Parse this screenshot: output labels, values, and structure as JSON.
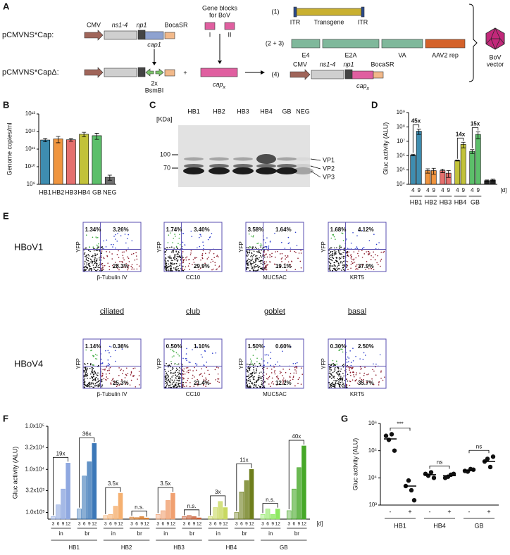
{
  "panel_labels": [
    "A",
    "B",
    "C",
    "D",
    "E",
    "F",
    "G"
  ],
  "diagram_a": {
    "row1": {
      "name": "pCMVNS*Cap:",
      "cmv": "CMV",
      "ns": "ns1-4",
      "np": "np1",
      "boca": "BocaSR",
      "cap": "cap1"
    },
    "row2": {
      "name": "pCMVNS*CapΔ:",
      "sites": "2x",
      "enzyme": "BsmBI"
    },
    "plus": "+",
    "gene_blocks": {
      "title_line1": "Gene blocks",
      "title_line2": "for BoV",
      "blocks": [
        "I",
        "II"
      ],
      "cap": {
        "text": "cap",
        "sub": "x"
      }
    },
    "vectors": [
      {
        "index": "(1)",
        "labels": [
          "ITR",
          "Transgene",
          "ITR"
        ]
      },
      {
        "index": "(2 + 3)",
        "labels": [
          "E4",
          "E2A",
          "VA",
          "AAV2 rep"
        ]
      },
      {
        "index": "(4)",
        "labels": [
          "CMV",
          "ns1-4",
          "np1",
          "BocaSR"
        ],
        "cap": {
          "text": "cap",
          "sub": "x"
        }
      }
    ],
    "product": [
      "BoV",
      "vector"
    ]
  },
  "blot": {
    "unit": "[KDa]",
    "markers": [
      "100",
      "70"
    ],
    "lanes": [
      "HB1",
      "HB2",
      "HB3",
      "HB4",
      "GB",
      "NEG"
    ],
    "proteins": [
      "VP1",
      "VP2",
      "VP3"
    ]
  },
  "flow": {
    "y_label": "YFP",
    "cell_types": [
      "ciliated",
      "club",
      "goblet",
      "basal"
    ],
    "rows": [
      {
        "name": "HBoV1",
        "plots": [
          {
            "x_label": "β-Tubulin IV",
            "ul": "1.34%",
            "ur": "3.26%",
            "lr": "28.3%"
          },
          {
            "x_label": "CC10",
            "ul": "1.74%",
            "ur": "3.40%",
            "lr": "29.9%"
          },
          {
            "x_label": "MUC5AC",
            "ul": "3.58%",
            "ur": "1.64%",
            "lr": "19.1%"
          },
          {
            "x_label": "KRT5",
            "ul": "1.68%",
            "ur": "4.12%",
            "lr": "37.9%"
          }
        ]
      },
      {
        "name": "HBoV4",
        "plots": [
          {
            "x_label": "β-Tubulin IV",
            "ul": "1.14%",
            "ur": "0.36%",
            "lr": "25.3%"
          },
          {
            "x_label": "CC10",
            "ul": "0.50%",
            "ur": "1.10%",
            "lr": "21.4%"
          },
          {
            "x_label": "MUC5AC",
            "ul": "1.50%",
            "ur": "0.60%",
            "lr": "12.2%"
          },
          {
            "x_label": "KRT5",
            "ul": "0.30%",
            "ur": "2.50%",
            "lr": "35.7%"
          }
        ]
      }
    ]
  },
  "chart_data": [
    {
      "type": "bar",
      "y_label": "Genome copies/ml",
      "log_scale": true,
      "categories": [
        "HB1",
        "HB2",
        "HB3",
        "HB4",
        "GB",
        "NEG"
      ],
      "values": [
        330000000000,
        380000000000,
        340000000000,
        700000000000,
        580000000000,
        2500000000
      ],
      "errors": [
        70000000000,
        150000000000,
        60000000000,
        200000000000,
        220000000000,
        800000000
      ],
      "colors": [
        "#3e8db0",
        "#f0953f",
        "#e5706e",
        "#c2c23a",
        "#5cbf6a",
        "#6e6e6e"
      ],
      "ylim": [
        1000000000,
        10000000000000
      ],
      "yticks": [
        {
          "value": 1000000000,
          "label": "10⁹"
        },
        {
          "value": 10000000000,
          "label": "10¹⁰"
        },
        {
          "value": 100000000000,
          "label": "10¹¹"
        },
        {
          "value": 1000000000000,
          "label": "10¹²"
        },
        {
          "value": 10000000000000,
          "label": "10¹³"
        }
      ]
    },
    {
      "type": "grouped_bar",
      "y_label": "Gluc activity (ALU)",
      "log_scale": true,
      "categories": [
        "HB1",
        "HB2",
        "HB3",
        "HB4",
        "GB",
        null
      ],
      "colors": [
        "#3e8db0",
        "#f0953f",
        "#e5706e",
        "#c2c23a",
        "#5cbf6a",
        "#222222"
      ],
      "series": [
        {
          "name": "4",
          "values": [
            1100000,
            90000,
            90000,
            450000,
            2000000,
            18000
          ],
          "errors": [
            150000,
            30000,
            25000,
            30000,
            600000,
            2000
          ]
        },
        {
          "name": "9",
          "values": [
            50000000,
            90000,
            60000,
            6000000,
            30000000,
            20000
          ],
          "errors": [
            20000000,
            40000,
            30000,
            2500000,
            15000000,
            3000
          ]
        }
      ],
      "fold_labels": [
        "45x",
        null,
        null,
        "14x",
        "15x",
        null
      ],
      "day_unit": "[d]",
      "ylim": [
        10000,
        1000000000
      ],
      "yticks": [
        {
          "value": 10000,
          "label": "10⁴"
        },
        {
          "value": 100000,
          "label": "10⁵"
        },
        {
          "value": 1000000,
          "label": "10⁶"
        },
        {
          "value": 10000000,
          "label": "10⁷"
        },
        {
          "value": 100000000,
          "label": "10⁸"
        },
        {
          "value": 1000000000,
          "label": "10⁹"
        }
      ]
    },
    {
      "type": "nested_bar",
      "y_label": "Gluc activity (ALU)",
      "log_scale": true,
      "days": [
        "3",
        "6",
        "9",
        "12"
      ],
      "day_unit": "[d]",
      "groups": [
        {
          "name": "HB1",
          "subgroups": [
            {
              "name": "in",
              "color": "#8fa8e0",
              "values": [
                800,
                1500,
                3500,
                14000
              ],
              "label": "19x"
            },
            {
              "name": "br",
              "color": "#3c78b8",
              "values": [
                1200,
                7000,
                15000,
                40000
              ],
              "label": "36x"
            }
          ]
        },
        {
          "name": "HB2",
          "subgroups": [
            {
              "name": "in",
              "color": "#f5b070",
              "values": [
                850,
                900,
                1400,
                2800
              ],
              "label": "3.5x"
            },
            {
              "name": "br",
              "color": "#d8761e",
              "values": [
                780,
                760,
                800,
                740
              ],
              "label": "n.s."
            }
          ]
        },
        {
          "name": "HB3",
          "subgroups": [
            {
              "name": "in",
              "color": "#f0a070",
              "values": [
                900,
                1100,
                1900,
                2800
              ],
              "label": "3.5x"
            },
            {
              "name": "br",
              "color": "#c85a30",
              "values": [
                800,
                850,
                800,
                750
              ],
              "label": "n.s."
            }
          ]
        },
        {
          "name": "HB4",
          "subgroups": [
            {
              "name": "in",
              "color": "#c8d860",
              "values": [
                800,
                1300,
                1800,
                1300
              ],
              "label": "3x"
            },
            {
              "name": "br",
              "color": "#6e7e1c",
              "values": [
                1000,
                3000,
                5500,
                10000
              ],
              "label": "11x"
            }
          ]
        },
        {
          "name": "GB",
          "subgroups": [
            {
              "name": "in",
              "color": "#8de860",
              "values": [
                900,
                1200,
                900,
                1200
              ],
              "label": "n.s."
            },
            {
              "name": "br",
              "color": "#46a828",
              "values": [
                1100,
                3500,
                11000,
                35000
              ],
              "label": "40x"
            }
          ]
        }
      ],
      "ylim": [
        700,
        100000
      ],
      "yticks": [
        {
          "value": 1000,
          "label": "1.0x10³"
        },
        {
          "value": 3200,
          "label": "3.2x10³"
        },
        {
          "value": 10000,
          "label": "1.0x10⁴"
        },
        {
          "value": 32000,
          "label": "3.2x10⁴"
        },
        {
          "value": 100000,
          "label": "1.0x10⁵"
        }
      ]
    },
    {
      "type": "dot",
      "y_label": "Gluc activity (ALU)",
      "log_scale": true,
      "groups": [
        {
          "name": "HB1",
          "significance": "***",
          "conditions": [
            {
              "name": "-",
              "points": [
                250000,
                400000,
                350000,
                100000
              ],
              "mean": 270000
            },
            {
              "name": "+",
              "points": [
                8000,
                3500,
                5000,
                1500
              ],
              "mean": 5000
            }
          ]
        },
        {
          "name": "HB4",
          "significance": "ns",
          "conditions": [
            {
              "name": "-",
              "points": [
                12000,
                16000,
                14000,
                10000
              ],
              "mean": 13000
            },
            {
              "name": "+",
              "points": [
                11000,
                13000,
                10000,
                14000
              ],
              "mean": 12000
            }
          ]
        },
        {
          "name": "GB",
          "significance": "ns",
          "conditions": [
            {
              "name": "-",
              "points": [
                17000,
                21000,
                18000,
                20000
              ],
              "mean": 19000
            },
            {
              "name": "+",
              "points": [
                50000,
                25000,
                40000,
                60000
              ],
              "mean": 40000
            }
          ]
        }
      ],
      "ylim": [
        1000,
        1000000
      ],
      "yticks": [
        {
          "value": 1000,
          "label": "10³"
        },
        {
          "value": 10000,
          "label": "10⁴"
        },
        {
          "value": 100000,
          "label": "10⁵"
        },
        {
          "value": 1000000,
          "label": "10⁶"
        }
      ]
    }
  ]
}
